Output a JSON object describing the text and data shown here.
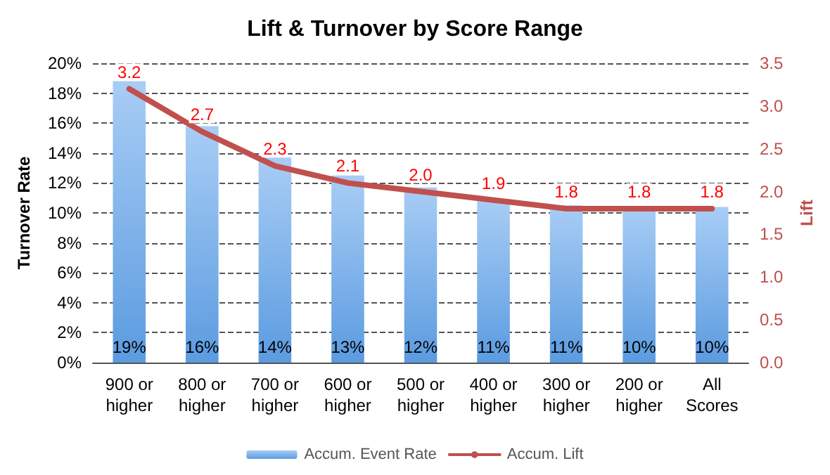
{
  "chart_data": {
    "type": "bar",
    "title": "Lift & Turnover by Score Range",
    "ylabel": "Turnover Rate",
    "y2label": "Lift",
    "categories": [
      "900 or\nhigher",
      "800 or\nhigher",
      "700 or\nhigher",
      "600 or\nhigher",
      "500 or\nhigher",
      "400 or\nhigher",
      "300 or\nhigher",
      "200 or\nhigher",
      "All\nScores"
    ],
    "series": [
      {
        "name": "Accum. Event Rate",
        "color": "#5b9be0",
        "values": [
          18.8,
          15.8,
          13.7,
          12.5,
          11.7,
          10.9,
          10.5,
          10.4,
          10.4
        ],
        "value_labels": [
          "19%",
          "16%",
          "14%",
          "13%",
          "12%",
          "11%",
          "11%",
          "10%",
          "10%"
        ]
      },
      {
        "name": "Accum. Lift",
        "type": "line",
        "axis": "y2",
        "color": "#c0504d",
        "values": [
          3.2,
          2.7,
          2.3,
          2.1,
          2.0,
          1.9,
          1.8,
          1.8,
          1.8
        ],
        "value_labels": [
          "3.2",
          "2.7",
          "2.3",
          "2.1",
          "2.0",
          "1.9",
          "1.8",
          "1.8",
          "1.8"
        ]
      }
    ],
    "ylim": [
      0,
      20
    ],
    "yticks": [
      {
        "value": 0,
        "label": "0%"
      },
      {
        "value": 2,
        "label": "2%"
      },
      {
        "value": 4,
        "label": "4%"
      },
      {
        "value": 6,
        "label": "6%"
      },
      {
        "value": 8,
        "label": "8%"
      },
      {
        "value": 10,
        "label": "10%"
      },
      {
        "value": 12,
        "label": "12%"
      },
      {
        "value": 14,
        "label": "14%"
      },
      {
        "value": 16,
        "label": "16%"
      },
      {
        "value": 18,
        "label": "18%"
      },
      {
        "value": 20,
        "label": "20%"
      }
    ],
    "y2lim": [
      0,
      3.5
    ],
    "y2ticks": [
      {
        "value": 0,
        "label": "0.0"
      },
      {
        "value": 0.5,
        "label": "0.5"
      },
      {
        "value": 1,
        "label": "1.0"
      },
      {
        "value": 1.5,
        "label": "1.5"
      },
      {
        "value": 2,
        "label": "2.0"
      },
      {
        "value": 2.5,
        "label": "2.5"
      },
      {
        "value": 3,
        "label": "3.0"
      },
      {
        "value": 3.5,
        "label": "3.5"
      }
    ],
    "grid": "y",
    "legend": "bottom",
    "marker": "none",
    "line_style": "solid"
  }
}
